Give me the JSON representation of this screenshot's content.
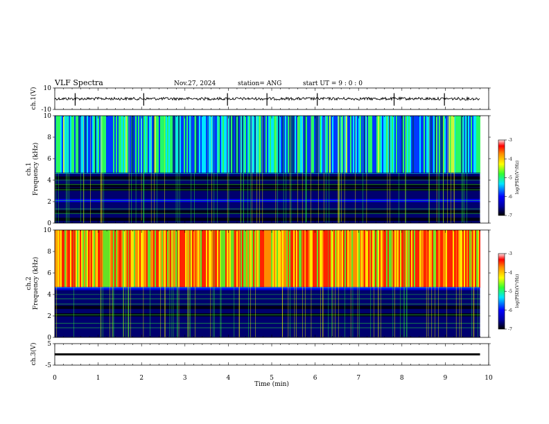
{
  "header": {
    "title": "VLF Spectra",
    "date": "Nov.27, 2024",
    "station": "station= ANG",
    "start_ut": "start  UT  =   9  : 0   : 0"
  },
  "colors": {
    "black": "#000000",
    "navy": "#00006e",
    "blue": "#0000ff",
    "cyan": "#00e6ff",
    "green": "#32ff32",
    "yellow": "#ffff00",
    "orange": "#ff8c00",
    "red": "#ff0000"
  },
  "chart_data": [
    {
      "type": "line",
      "panel": "ch1-waveform",
      "ylabel": "ch.1(V)",
      "ylim": [
        -10,
        10
      ],
      "y_ticks": [
        "10",
        "-10"
      ],
      "baseline": 0,
      "spikes_min": [
        0.47,
        2.05,
        3.98,
        4.89,
        6.05,
        7.82,
        8.98
      ]
    },
    {
      "type": "heatmap",
      "panel": "ch1-spectrogram",
      "ylabel": "ch.1\nFrequency (kHz)",
      "ylim": [
        0,
        10
      ],
      "y_ticks": [
        "0",
        "2",
        "4",
        "6",
        "8",
        "10"
      ],
      "data_x_range_min": [
        0,
        9.8
      ],
      "intensity_low_band_kHz": [
        0,
        4.6
      ],
      "intensity_high_band_kHz": [
        4.6,
        10
      ],
      "dominant_level_low": -6.5,
      "dominant_level_high": -5.2,
      "colorbar": {
        "label": "log(PSD)(V²/Hz)",
        "range": [
          -7,
          -3
        ],
        "ticks": [
          "-3",
          "-4",
          "-5",
          "-6",
          "-7"
        ]
      }
    },
    {
      "type": "heatmap",
      "panel": "ch2-spectrogram",
      "ylabel": "ch.2\nFrequency (kHz)",
      "ylim": [
        0,
        10
      ],
      "y_ticks": [
        "0",
        "2",
        "4",
        "6",
        "8",
        "10"
      ],
      "data_x_range_min": [
        0,
        9.8
      ],
      "intensity_low_band_kHz": [
        0,
        4.6
      ],
      "intensity_high_band_kHz": [
        4.6,
        10
      ],
      "dominant_level_low": -6.3,
      "dominant_level_high": -3.6,
      "colorbar": {
        "label": "log(PSD)(V²/Hz)",
        "range": [
          -7,
          -3
        ],
        "ticks": [
          "-3",
          "-4",
          "-5",
          "-6",
          "-7"
        ]
      }
    },
    {
      "type": "line",
      "panel": "ch3-waveform",
      "ylabel": "ch.3(V)",
      "ylim": [
        -5,
        5
      ],
      "y_ticks": [
        "5",
        "-5"
      ],
      "baseline": 0
    }
  ],
  "x_axis": {
    "label": "Time (min)",
    "range": [
      0,
      10
    ],
    "ticks": [
      "0",
      "1",
      "2",
      "3",
      "4",
      "5",
      "6",
      "7",
      "8",
      "9",
      "10"
    ]
  }
}
